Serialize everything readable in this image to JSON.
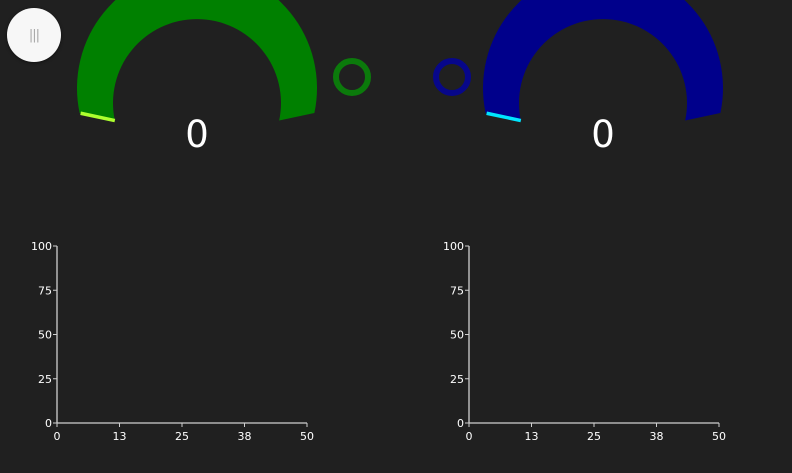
{
  "menu": {
    "icon": "hamburger-menu-icon",
    "glyph": "|||"
  },
  "gauges": [
    {
      "value": "0",
      "arc_color": "#008000",
      "needle_color": "#adff2f",
      "min": 0,
      "max": 100,
      "level": 0
    },
    {
      "value": "0",
      "arc_color": "#00008b",
      "needle_color": "#00e5ff",
      "min": 0,
      "max": 100,
      "level": 0
    }
  ],
  "indicators": [
    {
      "icon": "status-ring-icon",
      "color": "#0b7a0b"
    },
    {
      "icon": "status-ring-icon",
      "color": "#07078a"
    }
  ],
  "chart_data": [
    {
      "type": "line",
      "xlim": [
        0,
        50
      ],
      "ylim": [
        0,
        100
      ],
      "x_ticks": [
        "0",
        "13",
        "25",
        "38",
        "50"
      ],
      "y_ticks": [
        "0",
        "25",
        "50",
        "75",
        "100"
      ],
      "series": [],
      "grid": false
    },
    {
      "type": "line",
      "xlim": [
        0,
        50
      ],
      "ylim": [
        0,
        100
      ],
      "x_ticks": [
        "0",
        "13",
        "25",
        "38",
        "50"
      ],
      "y_ticks": [
        "0",
        "25",
        "50",
        "75",
        "100"
      ],
      "series": [],
      "grid": false
    }
  ]
}
